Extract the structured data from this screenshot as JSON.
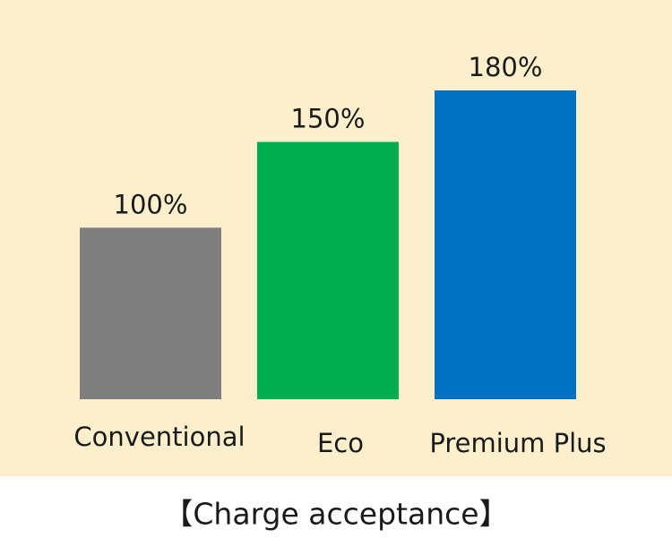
{
  "chart_data": {
    "type": "bar",
    "title": "【Charge acceptance】",
    "categories": [
      "Conventional",
      "Eco",
      "Premium Plus"
    ],
    "values": [
      100,
      150,
      180
    ],
    "value_labels": [
      "100%",
      "150%",
      "180%"
    ],
    "colors": [
      "#7f7f7f",
      "#00b050",
      "#0070c0"
    ],
    "background": "#fdefcc"
  }
}
